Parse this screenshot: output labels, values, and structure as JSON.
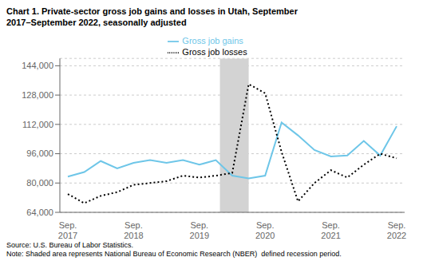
{
  "chart_data": {
    "type": "line",
    "title": "Chart 1. Private-sector gross job gains and losses in Utah, September\n2017–September 2022, seasonally adjusted",
    "annotation": "Source: U.S. Bureau of Labor Statistics.\nNote: Shaded area represents National Bureau of Economic Research (NBER)  defined recession period.",
    "categories": [
      "Sep.\n2017",
      null,
      null,
      null,
      "Sep.\n2018",
      null,
      null,
      null,
      "Sep.\n2019",
      null,
      null,
      null,
      "Sep.\n2020",
      null,
      null,
      null,
      "Sep.\n2021",
      null,
      null,
      null,
      "Sep.\n2022"
    ],
    "series": [
      {
        "name": "Gross job gains",
        "color": "#6ec6e8",
        "line_style": "solid",
        "values": [
          83500,
          86000,
          92000,
          88000,
          91000,
          92500,
          91000,
          92500,
          90000,
          92500,
          84000,
          82500,
          84000,
          113000,
          106000,
          98000,
          94500,
          95000,
          103000,
          95000,
          111000
        ]
      },
      {
        "name": "Gross job losses",
        "color": "#000000",
        "line_style": "dotted",
        "values": [
          74000,
          69000,
          73000,
          75000,
          79000,
          80000,
          81000,
          84000,
          83000,
          84000,
          85500,
          134000,
          129000,
          97000,
          70000,
          80000,
          87000,
          83000,
          90000,
          96000,
          93500
        ]
      }
    ],
    "shaded_span": {
      "start": 9.25,
      "end": 11.0,
      "color": "#d3d3d3"
    },
    "ylim": [
      64000,
      148000
    ],
    "yticks": [
      {
        "value": 64000,
        "label": "64,000"
      },
      {
        "value": 80000,
        "label": "80,000"
      },
      {
        "value": 96000,
        "label": "96,000"
      },
      {
        "value": 112000,
        "label": "112,000"
      },
      {
        "value": 128000,
        "label": "128,000"
      },
      {
        "value": 144000,
        "label": "144,000"
      }
    ],
    "grid": true,
    "legend": "top"
  }
}
